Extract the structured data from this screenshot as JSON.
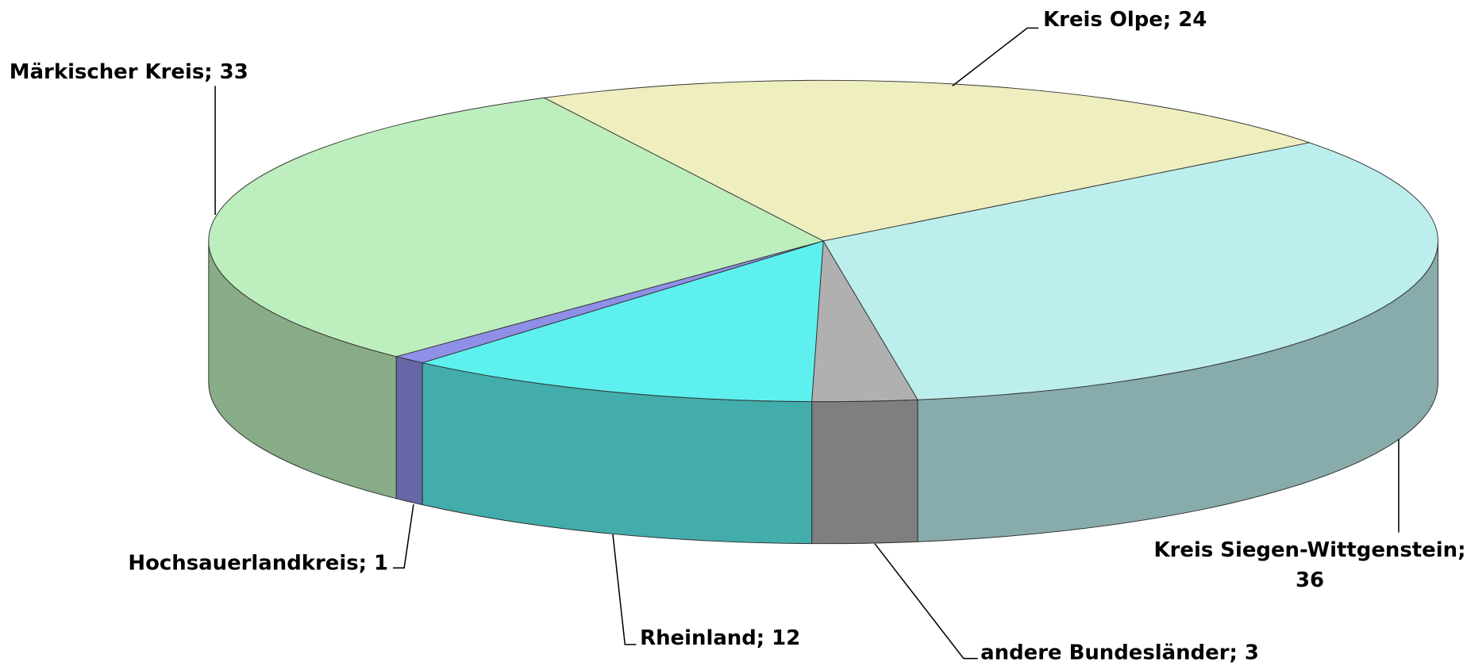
{
  "chart_data": {
    "type": "pie3d",
    "values": [
      24,
      36,
      3,
      12,
      1,
      33
    ],
    "value_labels": [
      "Kreis Olpe; 24",
      "Kreis Siegen-Wittgenstein; 36",
      "andere Bundesländer; 3",
      "Rheinland; 12",
      "Hochsauerlandkreis; 1",
      "Märkischer Kreis; 33"
    ],
    "colors": [
      "#eeeebf",
      "#bdeeee",
      "#b0b0b0",
      "#5ef0ee",
      "#8f8fe8",
      "#bdeebd"
    ]
  }
}
